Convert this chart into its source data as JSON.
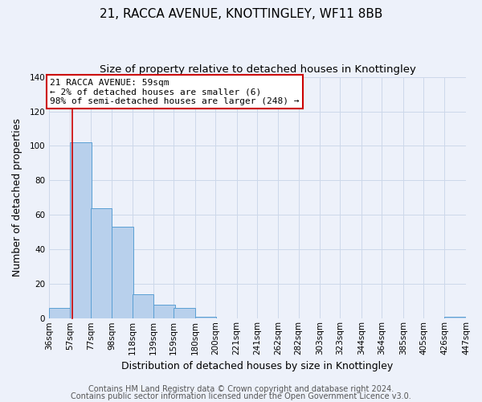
{
  "title": "21, RACCA AVENUE, KNOTTINGLEY, WF11 8BB",
  "subtitle": "Size of property relative to detached houses in Knottingley",
  "xlabel": "Distribution of detached houses by size in Knottingley",
  "ylabel": "Number of detached properties",
  "bar_left_edges": [
    36,
    57,
    77,
    98,
    118,
    139,
    159,
    180,
    200,
    221,
    241,
    262,
    282,
    303,
    323,
    344,
    364,
    385,
    405,
    426
  ],
  "bar_heights": [
    6,
    102,
    64,
    53,
    14,
    8,
    6,
    1,
    0,
    0,
    0,
    0,
    0,
    0,
    0,
    0,
    0,
    0,
    0,
    1
  ],
  "bin_width": 21,
  "bar_color": "#b8d0ec",
  "bar_edge_color": "#5a9fd4",
  "tick_labels": [
    "36sqm",
    "57sqm",
    "77sqm",
    "98sqm",
    "118sqm",
    "139sqm",
    "159sqm",
    "180sqm",
    "200sqm",
    "221sqm",
    "241sqm",
    "262sqm",
    "282sqm",
    "303sqm",
    "323sqm",
    "344sqm",
    "364sqm",
    "385sqm",
    "405sqm",
    "426sqm",
    "447sqm"
  ],
  "ylim": [
    0,
    140
  ],
  "yticks": [
    0,
    20,
    40,
    60,
    80,
    100,
    120,
    140
  ],
  "vline_x": 59,
  "vline_color": "#cc0000",
  "annotation_text": "21 RACCA AVENUE: 59sqm\n← 2% of detached houses are smaller (6)\n98% of semi-detached houses are larger (248) →",
  "annotation_box_facecolor": "#ffffff",
  "annotation_box_edgecolor": "#cc0000",
  "footer_line1": "Contains HM Land Registry data © Crown copyright and database right 2024.",
  "footer_line2": "Contains public sector information licensed under the Open Government Licence v3.0.",
  "bg_color": "#edf1fa",
  "grid_color": "#ccd8ea",
  "title_fontsize": 11,
  "subtitle_fontsize": 9.5,
  "axis_label_fontsize": 9,
  "tick_fontsize": 7.5,
  "annotation_fontsize": 8,
  "footer_fontsize": 7
}
